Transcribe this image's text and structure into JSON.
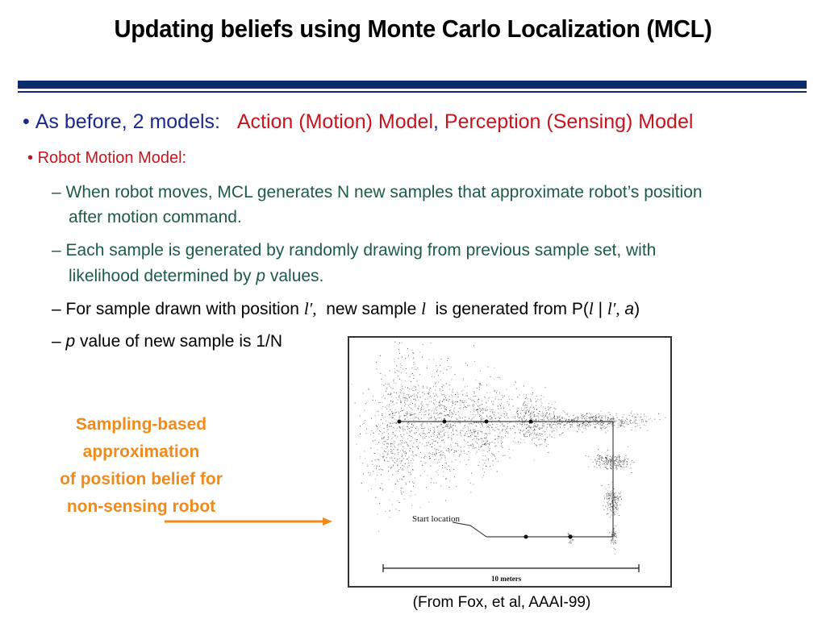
{
  "title": "Updating beliefs using Monte Carlo Localization (MCL)",
  "bullets": {
    "b1_prefix": "As before, 2 models:",
    "b1_model1": "Action (Motion) Model",
    "b1_comma": ",",
    "b1_model2": "Perception (Sensing) Model",
    "b2": "Robot Motion Model:",
    "s1_line1": "When robot moves, MCL generates N new samples that approximate robot’s position",
    "s1_line2": "after motion command.",
    "s2_line1": "Each sample is generated by randomly drawing from previous sample set, with",
    "s2_line2_a": "likelihood determined by",
    "s2_line2_p": "p",
    "s2_line2_b": "values.",
    "s3_a": "For sample drawn with position",
    "s3_l1": "l",
    "s3_b": "new sample",
    "s3_l2": "l",
    "s3_c": "is generated from P(",
    "s3_l3": "l",
    "s3_bar": "|",
    "s3_l4": "l",
    "s3_a_var": "a",
    "s3_close": ")",
    "s4_p": "p",
    "s4_rest": "value of new sample is 1/N"
  },
  "side_note": [
    "Sampling-based",
    "approximation",
    "of position belief for",
    "non-sensing robot"
  ],
  "figure": {
    "start_label": "Start location",
    "scale_label": "10 meters"
  },
  "caption": "(From Fox, et al, AAAI-99)",
  "colors": {
    "navy": "#1a2a8c",
    "red": "#c8141e",
    "green": "#1e5a4a",
    "orange": "#f08a1c",
    "rule": "#0d2a6b"
  }
}
